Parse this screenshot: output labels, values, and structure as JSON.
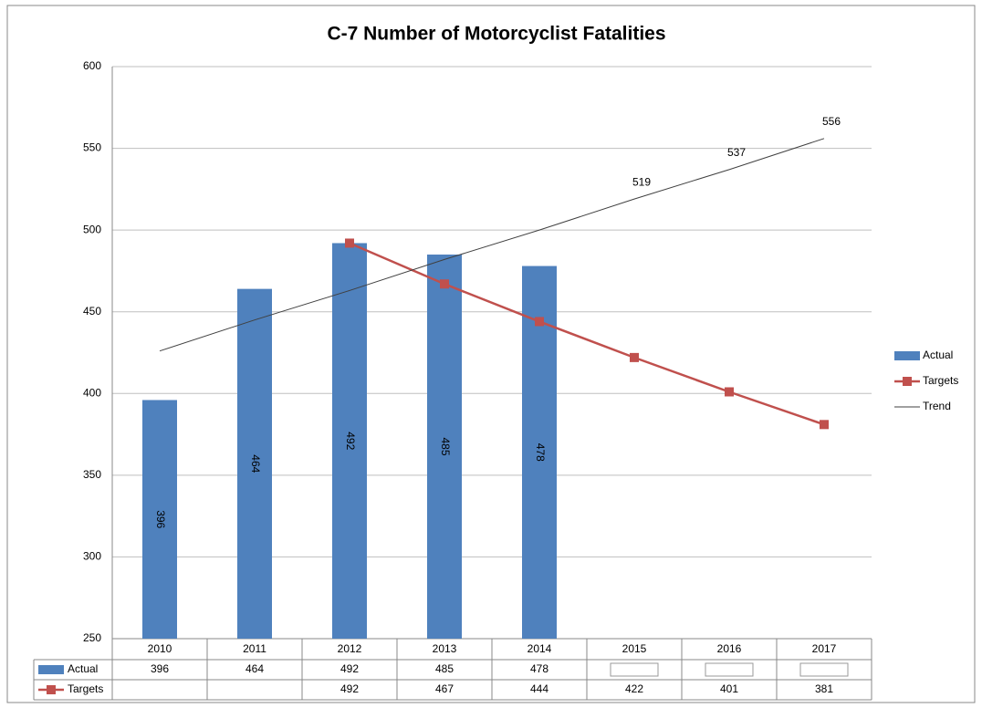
{
  "chart_data": {
    "type": "bar",
    "title": "C-7 Number of Motorcyclist Fatalities",
    "categories": [
      "2010",
      "2011",
      "2012",
      "2013",
      "2014",
      "2015",
      "2016",
      "2017"
    ],
    "series": [
      {
        "name": "Actual",
        "type": "bar",
        "color": "#4f81bd",
        "values": [
          396,
          464,
          492,
          485,
          478,
          null,
          null,
          null
        ]
      },
      {
        "name": "Targets",
        "type": "line",
        "marker": "square",
        "color": "#c0504d",
        "values": [
          null,
          null,
          492,
          467,
          444,
          422,
          401,
          381
        ]
      },
      {
        "name": "Trend",
        "type": "line",
        "color": "#404040",
        "values": [
          426,
          445,
          463,
          482,
          500,
          519,
          537,
          556
        ],
        "value_labels": [
          null,
          null,
          null,
          null,
          null,
          "519",
          "537",
          "556"
        ]
      }
    ],
    "ylim": [
      250,
      600
    ],
    "yticks": [
      250,
      300,
      350,
      400,
      450,
      500,
      550,
      600
    ],
    "grid": true,
    "legend": "right"
  }
}
